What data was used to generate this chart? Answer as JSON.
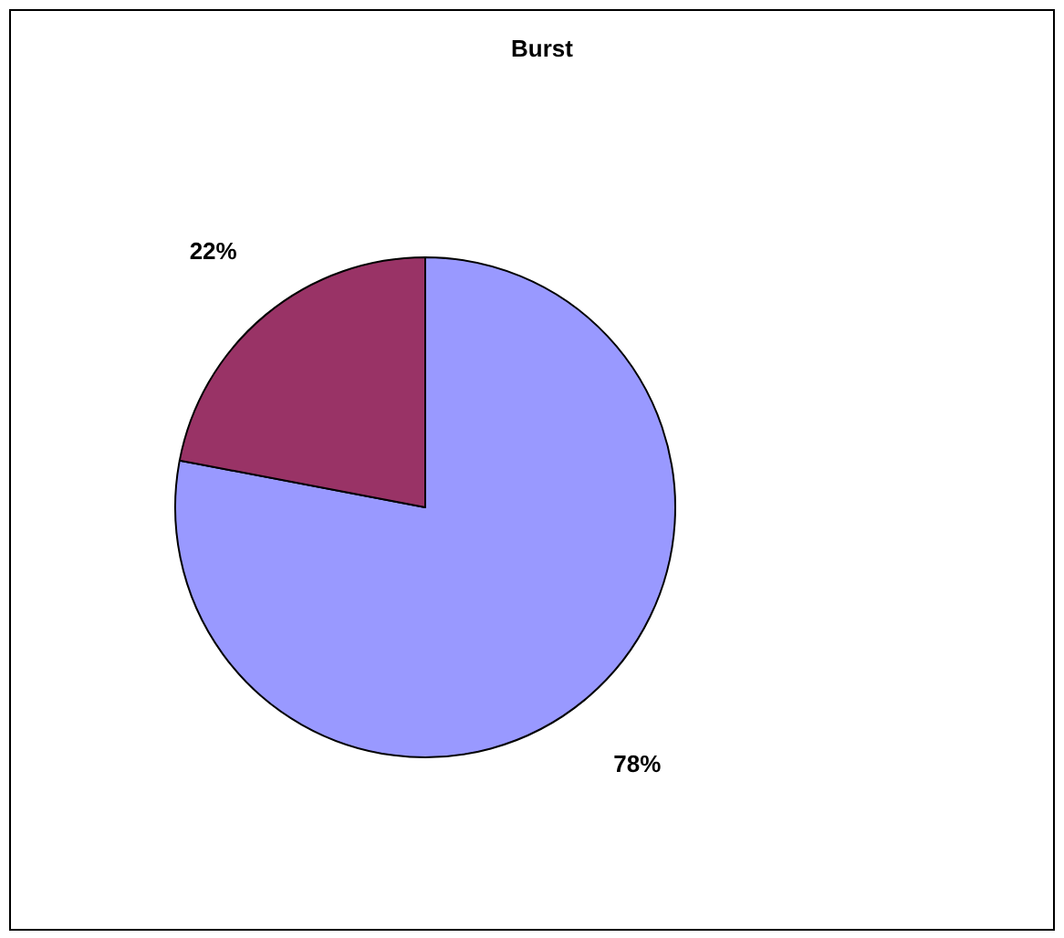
{
  "chart_data": {
    "type": "pie",
    "title": "Burst",
    "categories": [
      null,
      null
    ],
    "values": [
      78,
      22
    ],
    "colors": [
      "#9999ff",
      "#993366"
    ],
    "value_labels": [
      "78%",
      "22%"
    ]
  }
}
